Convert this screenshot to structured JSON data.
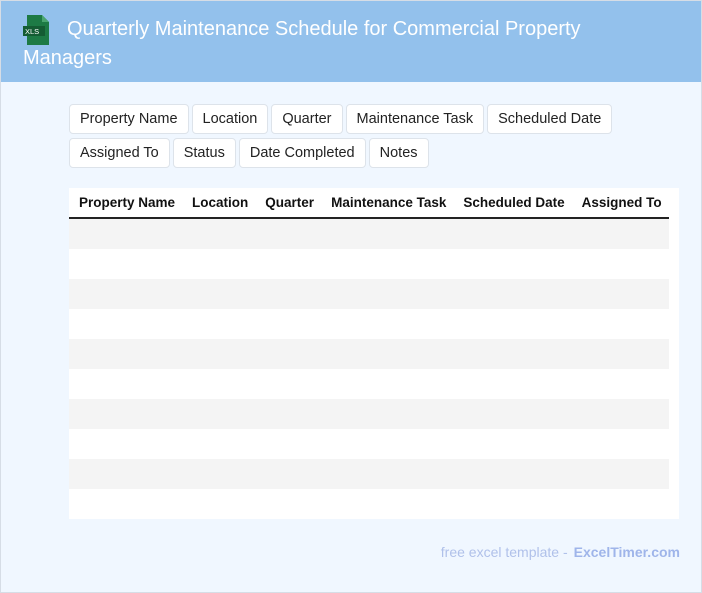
{
  "header": {
    "title": "Quarterly Maintenance Schedule for Commercial Property Managers",
    "logo_text": "XLS",
    "logo_color": "#1d7a45"
  },
  "field_chips": [
    "Property Name",
    "Location",
    "Quarter",
    "Maintenance Task",
    "Scheduled Date",
    "Assigned To",
    "Status",
    "Date Completed",
    "Notes"
  ],
  "table": {
    "columns": [
      "Property Name",
      "Location",
      "Quarter",
      "Maintenance Task",
      "Scheduled Date",
      "Assigned To"
    ],
    "row_count": 10
  },
  "footer": {
    "text": "free excel template -",
    "brand": "ExcelTimer.com"
  }
}
